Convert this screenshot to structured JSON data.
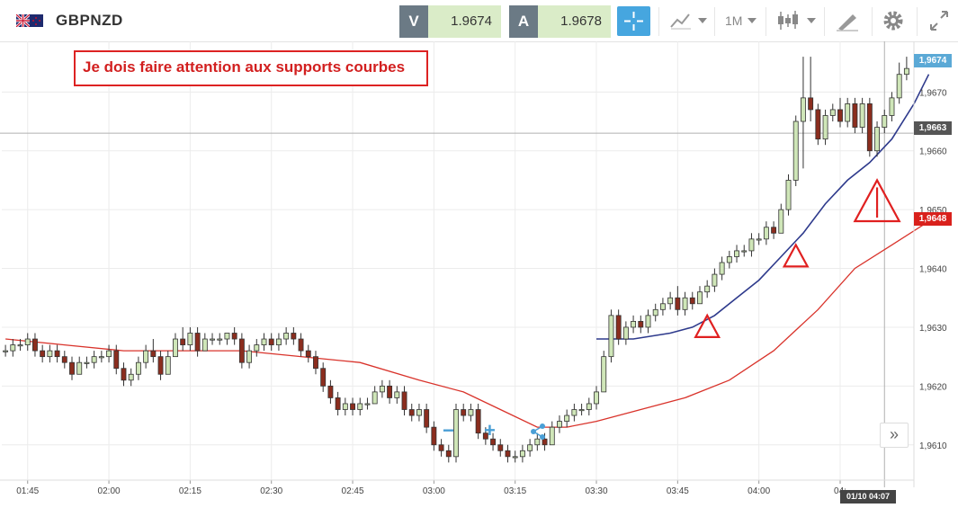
{
  "header": {
    "symbol": "GBPNZD",
    "sell_tag": "V",
    "sell_price": "1.9674",
    "buy_tag": "A",
    "buy_price": "1.9678",
    "timeframe": "1M",
    "icons": [
      "gb-nz-flag-icon",
      "crosshair-icon",
      "chart-type-icon",
      "candlestick-icon",
      "drawing-tools-icon",
      "gear-icon",
      "fullscreen-icon"
    ]
  },
  "annotation": {
    "text": "Je dois faire attention aux supports courbes",
    "color": "#d21f1f"
  },
  "axes": {
    "y_ticks": [
      "1,9670",
      "1,9660",
      "1,9650",
      "1,9640",
      "1,9630",
      "1,9620",
      "1,9610"
    ],
    "x_ticks": [
      "01:45",
      "02:00",
      "02:15",
      "02:30",
      "02:45",
      "03:00",
      "03:15",
      "03:30",
      "03:45",
      "04:00",
      "04:"
    ]
  },
  "price_tags": {
    "last": "1,9674",
    "crosshair": "1,9663",
    "ma_slow": "1,9648"
  },
  "crosshair_time": "01/10 04:07",
  "colors": {
    "up_candle": "#cfe6b8",
    "down_candle": "#8b2d1e",
    "ma_fast": "#2e3a8c",
    "ma_slow": "#d9332b",
    "accent": "#46a6df"
  },
  "zoom_controls": {
    "minus": "−",
    "plus": "+"
  },
  "expand_label": "»",
  "chart_data": {
    "type": "candlestick",
    "ylim": [
      1.9604,
      1.9678
    ],
    "candles": [
      [
        1.9626,
        1.9627,
        1.9625,
        1.9626
      ],
      [
        1.9626,
        1.9628,
        1.9625,
        1.9627
      ],
      [
        1.9627,
        1.9628,
        1.9626,
        1.9627
      ],
      [
        1.9627,
        1.9629,
        1.9626,
        1.9628
      ],
      [
        1.9628,
        1.9629,
        1.9625,
        1.9626
      ],
      [
        1.9626,
        1.9627,
        1.9624,
        1.9625
      ],
      [
        1.9625,
        1.9627,
        1.9624,
        1.9626
      ],
      [
        1.9626,
        1.9627,
        1.9624,
        1.9625
      ],
      [
        1.9625,
        1.9626,
        1.9623,
        1.9624
      ],
      [
        1.9624,
        1.9625,
        1.9621,
        1.9622
      ],
      [
        1.9622,
        1.9625,
        1.9622,
        1.9624
      ],
      [
        1.9624,
        1.9625,
        1.9623,
        1.9624
      ],
      [
        1.9624,
        1.9626,
        1.9623,
        1.9625
      ],
      [
        1.9625,
        1.9626,
        1.9624,
        1.9625
      ],
      [
        1.9625,
        1.9627,
        1.9624,
        1.9626
      ],
      [
        1.9626,
        1.9627,
        1.9622,
        1.9623
      ],
      [
        1.9623,
        1.9624,
        1.962,
        1.9621
      ],
      [
        1.9621,
        1.9623,
        1.962,
        1.9622
      ],
      [
        1.9622,
        1.9625,
        1.9621,
        1.9624
      ],
      [
        1.9624,
        1.9627,
        1.9623,
        1.9626
      ],
      [
        1.9626,
        1.9628,
        1.9624,
        1.9625
      ],
      [
        1.9625,
        1.9626,
        1.9621,
        1.9622
      ],
      [
        1.9622,
        1.9626,
        1.9622,
        1.9625
      ],
      [
        1.9625,
        1.9629,
        1.9625,
        1.9628
      ],
      [
        1.9628,
        1.963,
        1.9626,
        1.9627
      ],
      [
        1.9627,
        1.963,
        1.9626,
        1.9629
      ],
      [
        1.9629,
        1.963,
        1.9625,
        1.9626
      ],
      [
        1.9626,
        1.9629,
        1.9626,
        1.9628
      ],
      [
        1.9628,
        1.9629,
        1.9627,
        1.9628
      ],
      [
        1.9628,
        1.9629,
        1.9627,
        1.9628
      ],
      [
        1.9628,
        1.9629,
        1.9627,
        1.9629
      ],
      [
        1.9629,
        1.963,
        1.9627,
        1.9628
      ],
      [
        1.9628,
        1.9629,
        1.9623,
        1.9624
      ],
      [
        1.9624,
        1.9627,
        1.9623,
        1.9626
      ],
      [
        1.9626,
        1.9628,
        1.9625,
        1.9627
      ],
      [
        1.9627,
        1.9629,
        1.9626,
        1.9628
      ],
      [
        1.9628,
        1.9629,
        1.9626,
        1.9627
      ],
      [
        1.9627,
        1.9629,
        1.9626,
        1.9628
      ],
      [
        1.9628,
        1.963,
        1.9627,
        1.9629
      ],
      [
        1.9629,
        1.963,
        1.9627,
        1.9628
      ],
      [
        1.9628,
        1.9629,
        1.9625,
        1.9626
      ],
      [
        1.9626,
        1.9627,
        1.9624,
        1.9625
      ],
      [
        1.9625,
        1.9626,
        1.9622,
        1.9623
      ],
      [
        1.9623,
        1.9624,
        1.9619,
        1.962
      ],
      [
        1.962,
        1.9621,
        1.9617,
        1.9618
      ],
      [
        1.9618,
        1.9619,
        1.9615,
        1.9616
      ],
      [
        1.9616,
        1.9618,
        1.9615,
        1.9617
      ],
      [
        1.9617,
        1.9618,
        1.9615,
        1.9616
      ],
      [
        1.9616,
        1.9618,
        1.9615,
        1.9617
      ],
      [
        1.9617,
        1.9618,
        1.9616,
        1.9617
      ],
      [
        1.9617,
        1.962,
        1.9617,
        1.9619
      ],
      [
        1.9619,
        1.9621,
        1.9618,
        1.962
      ],
      [
        1.962,
        1.9621,
        1.9617,
        1.9618
      ],
      [
        1.9618,
        1.962,
        1.9617,
        1.9619
      ],
      [
        1.9619,
        1.962,
        1.9615,
        1.9616
      ],
      [
        1.9616,
        1.9617,
        1.9614,
        1.9615
      ],
      [
        1.9615,
        1.9617,
        1.9614,
        1.9616
      ],
      [
        1.9616,
        1.9617,
        1.9612,
        1.9613
      ],
      [
        1.9613,
        1.9614,
        1.9609,
        1.961
      ],
      [
        1.961,
        1.9611,
        1.9608,
        1.9609
      ],
      [
        1.9609,
        1.961,
        1.9607,
        1.9608
      ],
      [
        1.9608,
        1.9617,
        1.9607,
        1.9616
      ],
      [
        1.9616,
        1.9617,
        1.9614,
        1.9615
      ],
      [
        1.9615,
        1.9617,
        1.9614,
        1.9616
      ],
      [
        1.9616,
        1.9617,
        1.9611,
        1.9612
      ],
      [
        1.9612,
        1.9613,
        1.961,
        1.9611
      ],
      [
        1.9611,
        1.9612,
        1.9609,
        1.961
      ],
      [
        1.961,
        1.9611,
        1.9608,
        1.9609
      ],
      [
        1.9609,
        1.961,
        1.9607,
        1.9608
      ],
      [
        1.9608,
        1.9609,
        1.9607,
        1.9608
      ],
      [
        1.9608,
        1.961,
        1.9607,
        1.9609
      ],
      [
        1.9609,
        1.9611,
        1.9608,
        1.961
      ],
      [
        1.961,
        1.9612,
        1.9609,
        1.9611
      ],
      [
        1.9611,
        1.9612,
        1.9609,
        1.961
      ],
      [
        1.961,
        1.9614,
        1.961,
        1.9613
      ],
      [
        1.9613,
        1.9615,
        1.9612,
        1.9614
      ],
      [
        1.9614,
        1.9616,
        1.9613,
        1.9615
      ],
      [
        1.9615,
        1.9617,
        1.9614,
        1.9616
      ],
      [
        1.9616,
        1.9617,
        1.9615,
        1.9616
      ],
      [
        1.9616,
        1.9618,
        1.9615,
        1.9617
      ],
      [
        1.9617,
        1.962,
        1.9616,
        1.9619
      ],
      [
        1.9619,
        1.9626,
        1.9619,
        1.9625
      ],
      [
        1.9625,
        1.9633,
        1.9624,
        1.9632
      ],
      [
        1.9632,
        1.9633,
        1.9627,
        1.9628
      ],
      [
        1.9628,
        1.9631,
        1.9627,
        1.963
      ],
      [
        1.963,
        1.9632,
        1.9629,
        1.9631
      ],
      [
        1.9631,
        1.9632,
        1.9629,
        1.963
      ],
      [
        1.963,
        1.9633,
        1.9629,
        1.9632
      ],
      [
        1.9632,
        1.9634,
        1.9631,
        1.9633
      ],
      [
        1.9633,
        1.9635,
        1.9632,
        1.9634
      ],
      [
        1.9634,
        1.9636,
        1.9633,
        1.9635
      ],
      [
        1.9635,
        1.9637,
        1.9632,
        1.9633
      ],
      [
        1.9633,
        1.9636,
        1.9632,
        1.9635
      ],
      [
        1.9635,
        1.9636,
        1.9633,
        1.9634
      ],
      [
        1.9634,
        1.9637,
        1.9634,
        1.9636
      ],
      [
        1.9636,
        1.9638,
        1.9635,
        1.9637
      ],
      [
        1.9637,
        1.964,
        1.9636,
        1.9639
      ],
      [
        1.9639,
        1.9642,
        1.9638,
        1.9641
      ],
      [
        1.9641,
        1.9643,
        1.964,
        1.9642
      ],
      [
        1.9642,
        1.9644,
        1.9641,
        1.9643
      ],
      [
        1.9643,
        1.9644,
        1.9642,
        1.9643
      ],
      [
        1.9643,
        1.9646,
        1.9642,
        1.9645
      ],
      [
        1.9645,
        1.9646,
        1.9644,
        1.9645
      ],
      [
        1.9645,
        1.9648,
        1.9644,
        1.9647
      ],
      [
        1.9647,
        1.9648,
        1.9645,
        1.9646
      ],
      [
        1.9646,
        1.9651,
        1.9646,
        1.965
      ],
      [
        1.965,
        1.9656,
        1.9649,
        1.9655
      ],
      [
        1.9655,
        1.9666,
        1.9654,
        1.9665
      ],
      [
        1.9665,
        1.9676,
        1.9657,
        1.9669
      ],
      [
        1.9669,
        1.9676,
        1.9665,
        1.9667
      ],
      [
        1.9667,
        1.9668,
        1.9661,
        1.9662
      ],
      [
        1.9662,
        1.9667,
        1.9661,
        1.9666
      ],
      [
        1.9666,
        1.9668,
        1.9665,
        1.9667
      ],
      [
        1.9667,
        1.9669,
        1.9664,
        1.9665
      ],
      [
        1.9665,
        1.9669,
        1.9664,
        1.9668
      ],
      [
        1.9668,
        1.9669,
        1.9663,
        1.9664
      ],
      [
        1.9664,
        1.9669,
        1.9663,
        1.9668
      ],
      [
        1.9668,
        1.9669,
        1.9659,
        1.966
      ],
      [
        1.966,
        1.9665,
        1.9659,
        1.9664
      ],
      [
        1.9664,
        1.9667,
        1.9663,
        1.9666
      ],
      [
        1.9666,
        1.967,
        1.9665,
        1.9669
      ],
      [
        1.9669,
        1.9675,
        1.9668,
        1.9673
      ],
      [
        1.9673,
        1.9676,
        1.9672,
        1.9674
      ]
    ],
    "ma_fast": [
      [
        80,
        1.9628
      ],
      [
        85,
        1.9628
      ],
      [
        90,
        1.9629
      ],
      [
        93,
        1.963
      ],
      [
        96,
        1.9632
      ],
      [
        99,
        1.9635
      ],
      [
        102,
        1.9638
      ],
      [
        105,
        1.9642
      ],
      [
        108,
        1.9646
      ],
      [
        111,
        1.9651
      ],
      [
        114,
        1.9655
      ],
      [
        117,
        1.9658
      ],
      [
        120,
        1.9662
      ],
      [
        123,
        1.9668
      ],
      [
        125,
        1.9673
      ]
    ],
    "ma_slow": [
      [
        0,
        1.9628
      ],
      [
        8,
        1.9627
      ],
      [
        16,
        1.9626
      ],
      [
        24,
        1.9626
      ],
      [
        32,
        1.9626
      ],
      [
        40,
        1.9625
      ],
      [
        48,
        1.9624
      ],
      [
        56,
        1.9621
      ],
      [
        62,
        1.9619
      ],
      [
        67,
        1.9616
      ],
      [
        72,
        1.9613
      ],
      [
        76,
        1.9613
      ],
      [
        80,
        1.9614
      ],
      [
        86,
        1.9616
      ],
      [
        92,
        1.9618
      ],
      [
        98,
        1.9621
      ],
      [
        104,
        1.9626
      ],
      [
        110,
        1.9633
      ],
      [
        115,
        1.964
      ],
      [
        120,
        1.9644
      ],
      [
        125,
        1.9648
      ]
    ],
    "alert_triangles": [
      [
        95,
        1.9632
      ],
      [
        107,
        1.9644
      ],
      [
        118,
        1.9655
      ]
    ]
  }
}
